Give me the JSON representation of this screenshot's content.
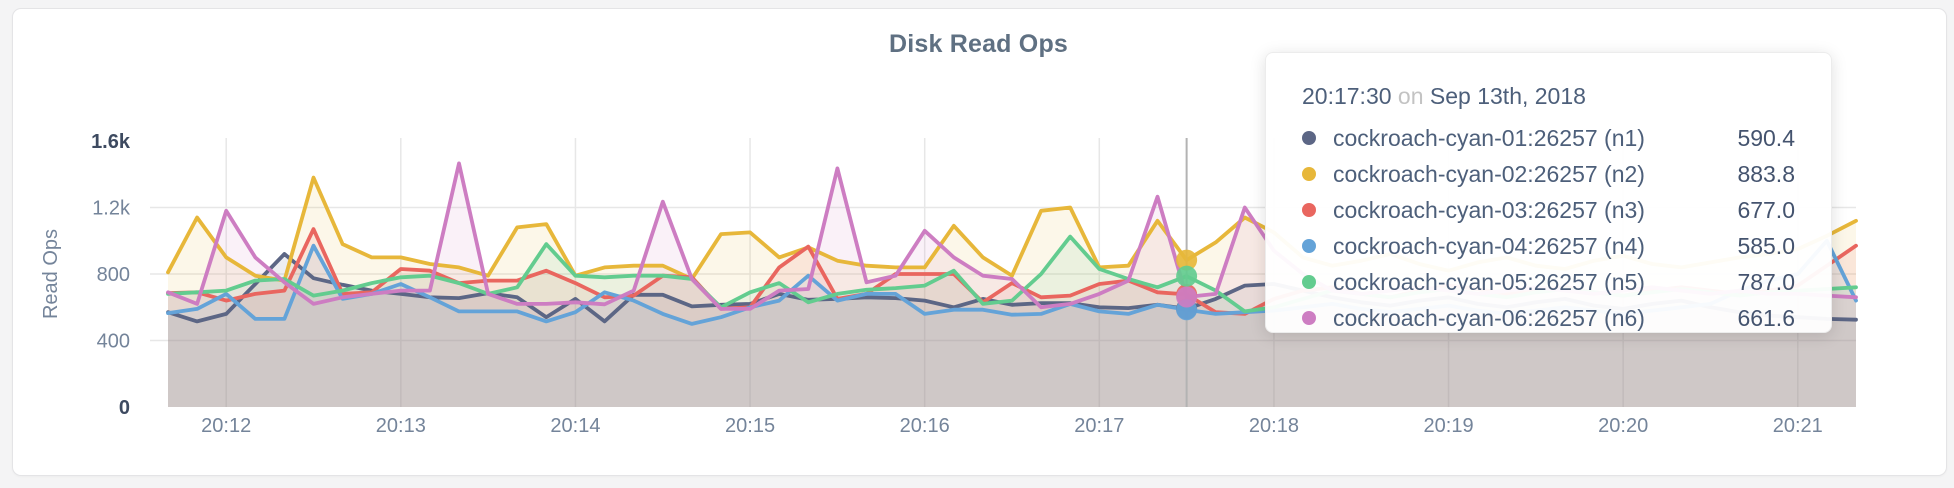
{
  "header": {
    "title": "Disk Read Ops"
  },
  "colors": {
    "page_bg": "#f4f4f5",
    "card_bg": "#ffffff",
    "card_border": "#e4e4e6",
    "grid": "#e7e7e7",
    "hover_line": "#b3b3b3",
    "axis_label": "#74849a",
    "axis_label_strong": "#3d4a60",
    "title_text": "#5f7082",
    "tooltip_text": "#4d5f7a",
    "tooltip_muted": "#c3c3c3"
  },
  "tooltip": {
    "time": "20:17:30",
    "separator": "on",
    "date": "Sep 13th, 2018",
    "rows": [
      {
        "label": "cockroach-cyan-01:26257 (n1)",
        "value": "590.4",
        "color": "#5c6685"
      },
      {
        "label": "cockroach-cyan-02:26257 (n2)",
        "value": "883.8",
        "color": "#e7b73a"
      },
      {
        "label": "cockroach-cyan-03:26257 (n3)",
        "value": "677.0",
        "color": "#e9665f"
      },
      {
        "label": "cockroach-cyan-04:26257 (n4)",
        "value": "585.0",
        "color": "#64a3d8"
      },
      {
        "label": "cockroach-cyan-05:26257 (n5)",
        "value": "787.0",
        "color": "#63cc8f"
      },
      {
        "label": "cockroach-cyan-06:26257 (n6)",
        "value": "661.6",
        "color": "#cd7dc2"
      }
    ]
  },
  "hover": {
    "x_index": 35
  },
  "chart_data": {
    "type": "area",
    "title": "Disk Read Ops",
    "xlabel": "",
    "ylabel": "Read Ops",
    "ylim": [
      0,
      1600
    ],
    "grid": true,
    "legend_position": "tooltip-only",
    "yticks": [
      {
        "value": 0,
        "label": "0",
        "strong": true,
        "line": false
      },
      {
        "value": 400,
        "label": "400",
        "strong": false,
        "line": true
      },
      {
        "value": 800,
        "label": "800",
        "strong": false,
        "line": true
      },
      {
        "value": 1200,
        "label": "1.2k",
        "strong": false,
        "line": true
      },
      {
        "value": 1600,
        "label": "1.6k",
        "strong": true,
        "line": false
      }
    ],
    "x_tick_labels": [
      "20:12",
      "20:13",
      "20:14",
      "20:15",
      "20:16",
      "20:17",
      "20:18",
      "20:19",
      "20:20",
      "20:21"
    ],
    "x_tick_indices": [
      2,
      8,
      14,
      20,
      26,
      32,
      38,
      44,
      50,
      56
    ],
    "x": [
      "20:11:40",
      "20:11:50",
      "20:12:00",
      "20:12:10",
      "20:12:20",
      "20:12:30",
      "20:12:40",
      "20:12:50",
      "20:13:00",
      "20:13:10",
      "20:13:20",
      "20:13:30",
      "20:13:40",
      "20:13:50",
      "20:14:00",
      "20:14:10",
      "20:14:20",
      "20:14:30",
      "20:14:40",
      "20:14:50",
      "20:15:00",
      "20:15:10",
      "20:15:20",
      "20:15:30",
      "20:15:40",
      "20:15:50",
      "20:16:00",
      "20:16:10",
      "20:16:20",
      "20:16:30",
      "20:16:40",
      "20:16:50",
      "20:17:00",
      "20:17:10",
      "20:17:20",
      "20:17:30",
      "20:17:40",
      "20:17:50",
      "20:18:00",
      "20:18:10",
      "20:18:20",
      "20:18:30",
      "20:18:40",
      "20:18:50",
      "20:19:00",
      "20:19:10",
      "20:19:20",
      "20:19:30",
      "20:19:40",
      "20:19:50",
      "20:20:00",
      "20:20:10",
      "20:20:20",
      "20:20:30",
      "20:20:40",
      "20:20:50",
      "20:21:00",
      "20:21:10",
      "20:21:20"
    ],
    "series": [
      {
        "name": "cockroach-cyan-01:26257 (n1)",
        "node": "n1",
        "color": "#5c6685",
        "values": [
          570,
          515,
          560,
          740,
          920,
          775,
          735,
          700,
          680,
          660,
          655,
          685,
          660,
          540,
          650,
          515,
          675,
          675,
          605,
          615,
          620,
          680,
          645,
          650,
          660,
          655,
          640,
          600,
          650,
          615,
          625,
          625,
          600,
          595,
          615,
          590.4,
          650,
          730,
          740,
          700,
          660,
          630,
          610,
          640,
          660,
          620,
          600,
          630,
          650,
          610,
          590,
          620,
          640,
          600,
          570,
          550,
          540,
          530,
          525
        ]
      },
      {
        "name": "cockroach-cyan-02:26257 (n2)",
        "node": "n2",
        "color": "#e7b73a",
        "values": [
          810,
          1140,
          900,
          790,
          760,
          1380,
          980,
          900,
          900,
          860,
          840,
          790,
          1080,
          1100,
          790,
          840,
          850,
          850,
          770,
          1040,
          1050,
          900,
          960,
          880,
          850,
          840,
          840,
          1090,
          900,
          790,
          1180,
          1200,
          840,
          850,
          1120,
          883.8,
          990,
          1140,
          1050,
          900,
          850,
          880,
          920,
          860,
          820,
          870,
          900,
          850,
          830,
          880,
          910,
          860,
          840,
          870,
          900,
          920,
          950,
          1030,
          1120
        ]
      },
      {
        "name": "cockroach-cyan-03:26257 (n3)",
        "node": "n3",
        "color": "#e9665f",
        "values": [
          685,
          690,
          640,
          680,
          700,
          1070,
          680,
          690,
          830,
          820,
          745,
          760,
          760,
          820,
          745,
          660,
          670,
          790,
          780,
          590,
          600,
          840,
          965,
          650,
          680,
          800,
          800,
          800,
          630,
          745,
          660,
          670,
          740,
          760,
          690,
          677,
          570,
          560,
          650,
          700,
          720,
          680,
          660,
          700,
          730,
          710,
          680,
          700,
          720,
          690,
          670,
          700,
          720,
          700,
          680,
          700,
          730,
          850,
          970
        ]
      },
      {
        "name": "cockroach-cyan-04:26257 (n4)",
        "node": "n4",
        "color": "#64a3d8",
        "values": [
          565,
          590,
          680,
          530,
          530,
          970,
          650,
          680,
          740,
          660,
          575,
          575,
          575,
          515,
          570,
          690,
          640,
          560,
          500,
          540,
          600,
          640,
          790,
          640,
          680,
          680,
          560,
          585,
          585,
          555,
          560,
          620,
          575,
          560,
          615,
          585,
          560,
          570,
          580,
          600,
          620,
          590,
          570,
          590,
          610,
          580,
          560,
          580,
          600,
          580,
          560,
          580,
          600,
          620,
          700,
          760,
          800,
          1000,
          640
        ]
      },
      {
        "name": "cockroach-cyan-05:26257 (n5)",
        "node": "n5",
        "color": "#63cc8f",
        "values": [
          680,
          690,
          700,
          760,
          770,
          670,
          700,
          745,
          780,
          790,
          745,
          680,
          720,
          980,
          790,
          780,
          790,
          790,
          770,
          600,
          690,
          745,
          630,
          680,
          705,
          715,
          730,
          820,
          620,
          640,
          800,
          1025,
          830,
          770,
          720,
          787,
          700,
          575,
          600,
          650,
          700,
          680,
          660,
          690,
          710,
          680,
          660,
          690,
          710,
          690,
          670,
          690,
          710,
          690,
          670,
          690,
          700,
          710,
          720
        ]
      },
      {
        "name": "cockroach-cyan-06:26257 (n6)",
        "node": "n6",
        "color": "#cd7dc2",
        "values": [
          690,
          620,
          1180,
          900,
          750,
          620,
          660,
          680,
          700,
          700,
          1465,
          680,
          620,
          620,
          630,
          618,
          700,
          1235,
          770,
          590,
          590,
          700,
          710,
          1435,
          750,
          790,
          1060,
          900,
          790,
          770,
          600,
          620,
          680,
          760,
          1265,
          661.6,
          680,
          1200,
          940,
          800,
          700,
          680,
          700,
          720,
          700,
          680,
          700,
          720,
          700,
          680,
          700,
          720,
          700,
          680,
          700,
          680,
          680,
          670,
          660
        ]
      }
    ]
  }
}
